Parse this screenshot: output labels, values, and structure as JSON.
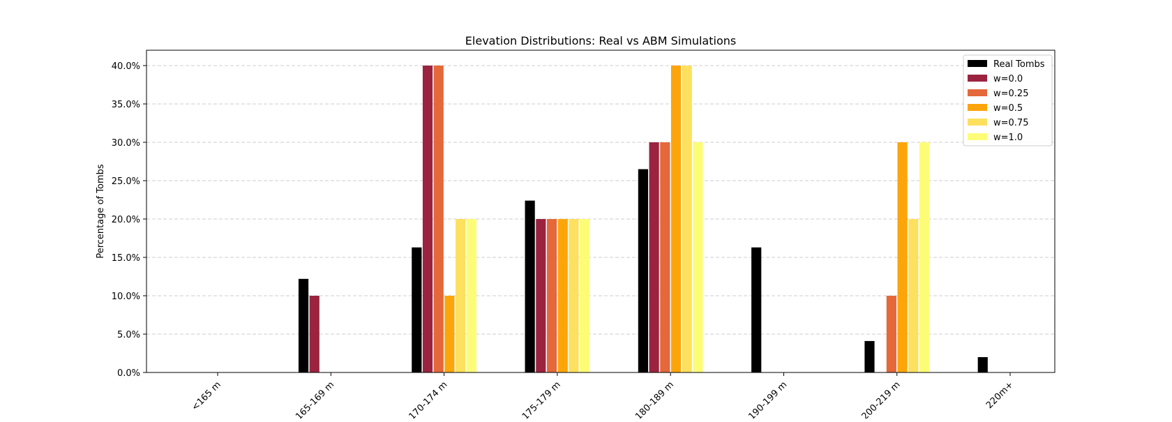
{
  "chart_data": {
    "type": "bar",
    "title": "Elevation Distributions: Real vs ABM Simulations",
    "xlabel": "",
    "ylabel": "Percentage of Tombs",
    "ylim": [
      0,
      42
    ],
    "y_ticks": [
      "0.0%",
      "5.0%",
      "10.0%",
      "15.0%",
      "20.0%",
      "25.0%",
      "30.0%",
      "35.0%",
      "40.0%"
    ],
    "y_tick_values": [
      0,
      5,
      10,
      15,
      20,
      25,
      30,
      35,
      40
    ],
    "grid": "horizontal dashed",
    "legend_position": "top-right",
    "categories": [
      "<165 m",
      "165-169 m",
      "170-174 m",
      "175-179 m",
      "180-189 m",
      "190-199 m",
      "200-219 m",
      "220m+"
    ],
    "series": [
      {
        "name": "Real Tombs",
        "color": "#000000",
        "values": [
          0,
          12.2,
          16.3,
          22.4,
          26.5,
          16.3,
          4.1,
          2.0
        ]
      },
      {
        "name": "w=0.0",
        "color": "#9b2340",
        "values": [
          0,
          10,
          40,
          20,
          30,
          0,
          0,
          0
        ]
      },
      {
        "name": "w=0.25",
        "color": "#e4683a",
        "values": [
          0,
          0,
          40,
          20,
          30,
          0,
          10,
          0
        ]
      },
      {
        "name": "w=0.5",
        "color": "#fca50a",
        "values": [
          0,
          0,
          10,
          20,
          40,
          0,
          30,
          0
        ]
      },
      {
        "name": "w=0.75",
        "color": "#fde05e",
        "values": [
          0,
          0,
          20,
          20,
          40,
          0,
          20,
          0
        ]
      },
      {
        "name": "w=1.0",
        "color": "#fdfc77",
        "values": [
          0,
          0,
          20,
          20,
          30,
          0,
          30,
          0
        ]
      }
    ]
  }
}
